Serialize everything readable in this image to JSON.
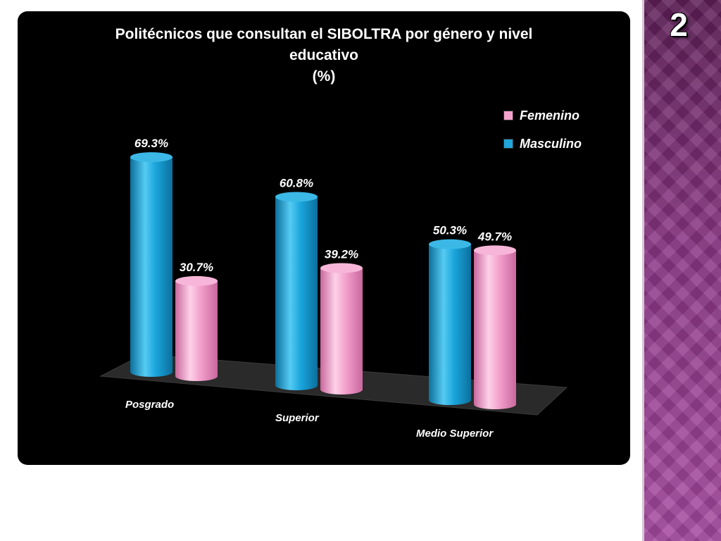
{
  "slide": {
    "number": "2"
  },
  "chart_data": {
    "type": "bar",
    "title_lines": [
      "Politécnicos que consultan el SIBOLTRA por género y nivel",
      "educativo",
      "(%)"
    ],
    "categories": [
      "Posgrado",
      "Superior",
      "Medio Superior"
    ],
    "series": [
      {
        "name": "Masculino",
        "values": [
          69.3,
          60.8,
          50.3
        ],
        "labels": [
          "69.3%",
          "60.8%",
          "50.3%"
        ],
        "color": "#1ea7dd"
      },
      {
        "name": "Femenino",
        "values": [
          30.7,
          39.2,
          49.7
        ],
        "labels": [
          "30.7%",
          "39.2%",
          "49.7%"
        ],
        "color": "#f4a3cf"
      }
    ],
    "legend_position": "top-right",
    "legend_order": [
      "Femenino",
      "Masculino"
    ],
    "ylim": [
      0,
      100
    ],
    "style": "3d-cylinder"
  },
  "colors": {
    "panel": "#000000",
    "strip": "#8a3684",
    "text": "#ffffff"
  }
}
